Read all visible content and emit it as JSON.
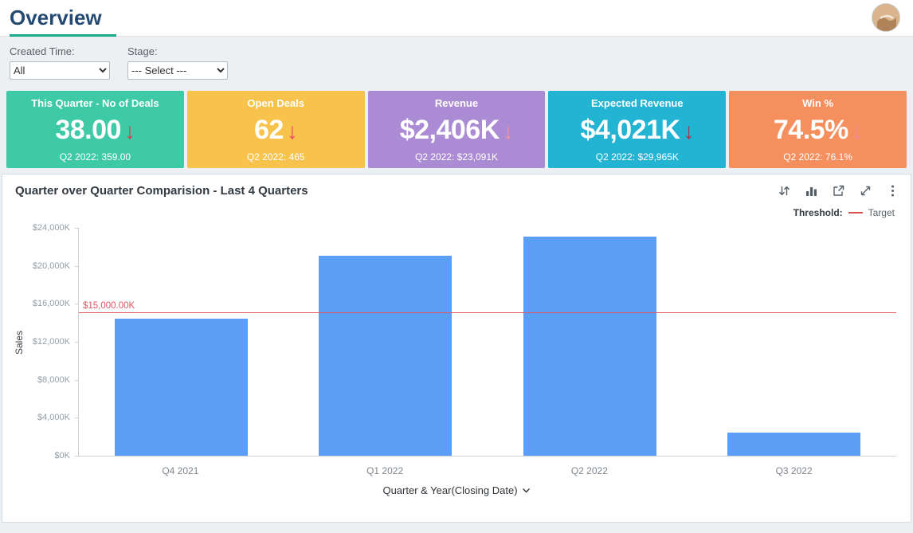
{
  "page": {
    "title": "Overview"
  },
  "filters": {
    "created_time": {
      "label": "Created Time:",
      "value": "All"
    },
    "stage": {
      "label": "Stage:",
      "value": "--- Select ---"
    }
  },
  "kpi_cards": [
    {
      "title": "This Quarter - No of Deals",
      "value": "38.00",
      "arrow": "↓",
      "subtext": "Q2 2022: 359.00",
      "color": "#3ec9a7",
      "arrow_color": "#e0394e"
    },
    {
      "title": "Open Deals",
      "value": "62",
      "arrow": "↓",
      "subtext": "Q2 2022: 465",
      "color": "#f8c34d",
      "arrow_color": "#e84a5e"
    },
    {
      "title": "Revenue",
      "value": "$2,406K",
      "arrow": "↓",
      "subtext": "Q2 2022: $23,091K",
      "color": "#ab8bd3",
      "arrow_color": "#f392a5"
    },
    {
      "title": "Expected Revenue",
      "value": "$4,021K",
      "arrow": "↓",
      "subtext": "Q2 2022: $29,965K",
      "color": "#22b4d2",
      "arrow_color": "#b03346"
    },
    {
      "title": "Win %",
      "value": "74.5%",
      "arrow": "↓",
      "subtext": "Q2 2022: 76.1%",
      "color": "#f58f5e",
      "arrow_color": "#f2889c"
    }
  ],
  "chart_panel": {
    "title": "Quarter over Quarter Comparision - Last 4 Quarters",
    "toolbar_icons": [
      "sort-icon",
      "chart-type-icon",
      "open-in-new-icon",
      "expand-icon",
      "more-options-icon"
    ],
    "legend": {
      "threshold_label": "Threshold:",
      "target_label": "Target",
      "target_color": "#d9534f"
    }
  },
  "chart_data": {
    "type": "bar",
    "title": "Quarter over Quarter Comparision - Last 4 Quarters",
    "categories": [
      "Q4 2021",
      "Q1 2022",
      "Q2 2022",
      "Q3 2022"
    ],
    "values": [
      14400,
      21100,
      23091,
      2406
    ],
    "bar_color": "#5b9ef5",
    "xlabel": "Quarter & Year(Closing Date)",
    "ylabel": "Sales",
    "ylim": [
      0,
      24000
    ],
    "ytick_step": 4000,
    "ytick_labels": [
      "$0K",
      "$4,000K",
      "$8,000K",
      "$12,000K",
      "$16,000K",
      "$20,000K",
      "$24,000K"
    ],
    "grid": false,
    "legend_position": "top-right",
    "threshold": {
      "value": 15000,
      "label": "$15,000.00K",
      "color": "#e15663"
    }
  }
}
